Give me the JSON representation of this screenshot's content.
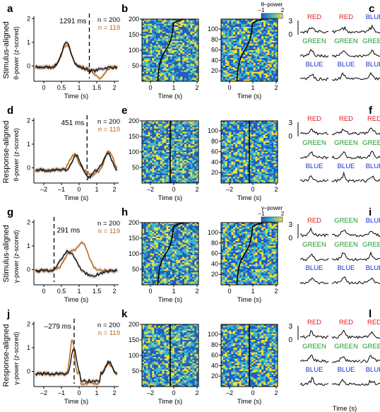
{
  "colors": {
    "black_series": "#111111",
    "orange_series": "#b5651d",
    "heat_low": "#1f5fbf",
    "heat_mid": "#3fb6c9",
    "heat_high": "#f2e033",
    "red": "#e21b1b",
    "green": "#1a9a2a",
    "blue": "#1c2fd1"
  },
  "rows": [
    {
      "row_label": "Stimulus-aligned",
      "line_panel": {
        "letter": "a",
        "ylabel": "θ-power (z-scored)",
        "xlabel": "Time (s)",
        "latency_text": "1291 ms",
        "n_black": "n = 200",
        "n_orange": "n = 119",
        "xticks": [
          "0",
          "0.5",
          "1",
          "1.5",
          "2"
        ],
        "yticks": [
          "0",
          "1",
          "2"
        ]
      },
      "heat_panel": {
        "letter": "b",
        "xlabel": "Time (s)",
        "left_yticks": [
          "50",
          "100",
          "150",
          "200"
        ],
        "right_yticks": [
          "20",
          "40",
          "60",
          "80",
          "100"
        ],
        "xticks": [
          "0",
          "1",
          "2"
        ],
        "colorbar_title": "θ–power",
        "colorbar_ticks": [
          "–1",
          "2"
        ]
      },
      "color_panel": {
        "letter": "c",
        "scale_label": "3",
        "zero_label": "0",
        "labels": [
          "RED",
          "RED",
          "BLUE",
          "GREEN",
          "GREEN",
          "GREEN",
          "BLUE",
          "BLUE",
          "BLUE"
        ]
      }
    },
    {
      "row_label": "Response-aligned",
      "line_panel": {
        "letter": "d",
        "ylabel": "θ-power (z-scored)",
        "xlabel": "Time (s)",
        "latency_text": "451 ms",
        "n_black": "n = 200",
        "n_orange": "n = 119",
        "xticks": [
          "–2",
          "–1",
          "0",
          "1",
          "2"
        ],
        "yticks": [
          "0",
          "1",
          "2"
        ]
      },
      "heat_panel": {
        "letter": "e",
        "xlabel": "Time (s)",
        "left_yticks": [
          "50",
          "100",
          "150",
          "200"
        ],
        "right_yticks": [
          "20",
          "40",
          "60",
          "80",
          "100"
        ],
        "xticks": [
          "–2",
          "0",
          "2"
        ]
      },
      "color_panel": {
        "letter": "f",
        "scale_label": "3",
        "zero_label": "0",
        "labels": [
          "RED",
          "RED",
          "RED",
          "GREEN",
          "GREEN",
          "GREEN",
          "BLUE",
          "BLUE",
          "BLUE"
        ]
      }
    },
    {
      "row_label": "Stimulus-aligned",
      "line_panel": {
        "letter": "g",
        "ylabel": "γ-power (z-scored)",
        "xlabel": "Time (s)",
        "latency_text": "291 ms",
        "n_black": "n = 200",
        "n_orange": "n = 119",
        "xticks": [
          "0",
          "0.5",
          "1",
          "1.5",
          "2"
        ],
        "yticks": [
          "0",
          "1",
          "2"
        ]
      },
      "heat_panel": {
        "letter": "h",
        "xlabel": "Time (s)",
        "left_yticks": [
          "50",
          "100",
          "150",
          "200"
        ],
        "right_yticks": [
          "20",
          "40",
          "60",
          "80",
          "100"
        ],
        "xticks": [
          "0",
          "1",
          "2"
        ],
        "colorbar_title": "γ–power",
        "colorbar_ticks": [
          "–1",
          "2"
        ]
      },
      "color_panel": {
        "letter": "i",
        "scale_label": "3",
        "zero_label": "0",
        "labels": [
          "RED",
          "GREEN",
          "BLUE",
          "GREEN",
          "GREEN",
          "GREEN",
          "BLUE",
          "BLUE",
          "BLUE"
        ]
      }
    },
    {
      "row_label": "Response-aligned",
      "line_panel": {
        "letter": "j",
        "ylabel": "γ-power (z-scored)",
        "xlabel": "Time (s)",
        "latency_text": "–279 ms",
        "n_black": "n = 200",
        "n_orange": "n = 119",
        "xticks": [
          "–2",
          "–1",
          "0",
          "1",
          "2"
        ],
        "yticks": [
          "0",
          "1",
          "2"
        ]
      },
      "heat_panel": {
        "letter": "k",
        "xlabel": "Time (s)",
        "left_yticks": [
          "50",
          "100",
          "150",
          "200"
        ],
        "right_yticks": [
          "20",
          "40",
          "60",
          "80",
          "100"
        ],
        "xticks": [
          "–2",
          "0",
          "2"
        ]
      },
      "color_panel": {
        "letter": "l",
        "scale_label": "3",
        "zero_label": "0",
        "xlabel": "Time (s)",
        "labels": [
          "RED",
          "RED",
          "RED",
          "GREEN",
          "GREEN",
          "GREEN",
          "BLUE",
          "BLUE",
          "BLUE"
        ]
      }
    }
  ]
}
